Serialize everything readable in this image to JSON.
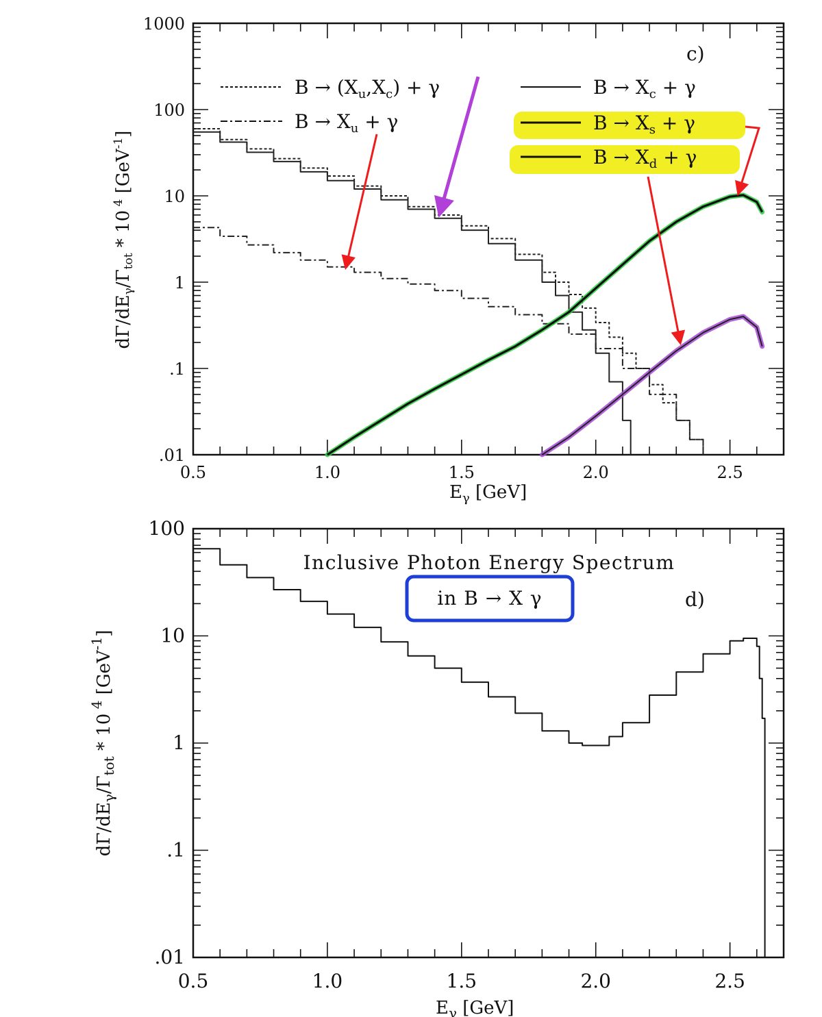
{
  "chart_data": [
    {
      "type": "line",
      "panel_label": "c)",
      "xlabel": "Eγ [GeV]",
      "ylabel": "dΓ/dEγ/Γtot * 10⁴ [GeV⁻¹]",
      "xlim": [
        0.5,
        2.7
      ],
      "ylim": [
        0.01,
        1000
      ],
      "yscale": "log",
      "x_ticks": [
        "0.5",
        "1.0",
        "1.5",
        "2.0",
        "2.5"
      ],
      "y_ticks": [
        "1000",
        "100",
        "10",
        "1",
        ".1",
        ".01"
      ],
      "highlight_color": "#f2ee24",
      "arrow_color": "#ee1c1c",
      "series": [
        {
          "name": "B → (Xu,Xc) + γ",
          "style": "dotted",
          "color": "#222222",
          "x": [
            0.5,
            0.6,
            0.7,
            0.8,
            0.9,
            1.0,
            1.1,
            1.2,
            1.3,
            1.4,
            1.5,
            1.6,
            1.7,
            1.8,
            1.85,
            1.9,
            1.95,
            2.0,
            2.05,
            2.1,
            2.15,
            2.2,
            2.25,
            2.3,
            2.35,
            2.4
          ],
          "y": [
            60,
            45,
            35,
            27,
            21,
            17,
            13,
            10,
            7.5,
            6,
            4.5,
            3.2,
            2.1,
            1.3,
            1.0,
            0.72,
            0.5,
            0.34,
            0.23,
            0.15,
            0.1,
            0.065,
            0.04,
            0.025,
            0.015,
            0.01
          ]
        },
        {
          "name": "B → Xc + γ",
          "style": "solid",
          "color": "#222222",
          "x": [
            0.5,
            0.6,
            0.7,
            0.8,
            0.9,
            1.0,
            1.1,
            1.2,
            1.3,
            1.4,
            1.5,
            1.6,
            1.7,
            1.8,
            1.85,
            1.9,
            1.95,
            2.0,
            2.05,
            2.1,
            2.13
          ],
          "y": [
            55,
            42,
            32,
            25,
            19,
            15,
            12,
            9,
            7,
            5.5,
            4,
            2.8,
            1.8,
            1.0,
            0.7,
            0.45,
            0.28,
            0.15,
            0.07,
            0.025,
            0.01
          ]
        },
        {
          "name": "B → Xu + γ",
          "style": "dashdot",
          "color": "#222222",
          "x": [
            0.5,
            0.6,
            0.7,
            0.8,
            0.9,
            1.0,
            1.1,
            1.2,
            1.3,
            1.4,
            1.5,
            1.6,
            1.7,
            1.8,
            1.9,
            2.0,
            2.1,
            2.2,
            2.3,
            2.35,
            2.4
          ],
          "y": [
            4.3,
            3.4,
            2.7,
            2.2,
            1.8,
            1.5,
            1.3,
            1.1,
            0.95,
            0.8,
            0.65,
            0.52,
            0.42,
            0.33,
            0.25,
            0.17,
            0.1,
            0.05,
            0.025,
            0.015,
            0.01
          ]
        },
        {
          "name": "B → Xs + γ",
          "style": "solid-thick",
          "color": "#111111",
          "overlay_color": "#2ecc40",
          "x": [
            1.0,
            1.1,
            1.2,
            1.3,
            1.4,
            1.5,
            1.6,
            1.7,
            1.8,
            1.9,
            2.0,
            2.1,
            2.2,
            2.3,
            2.4,
            2.5,
            2.55,
            2.6,
            2.62
          ],
          "y": [
            0.01,
            0.016,
            0.025,
            0.039,
            0.058,
            0.085,
            0.125,
            0.18,
            0.28,
            0.45,
            0.85,
            1.6,
            3.0,
            5.0,
            7.5,
            9.8,
            10.2,
            8.5,
            6.5
          ]
        },
        {
          "name": "B → Xd + γ",
          "style": "solid",
          "color": "#222222",
          "overlay_color": "#a64ad6",
          "x": [
            1.8,
            1.9,
            2.0,
            2.1,
            2.2,
            2.3,
            2.4,
            2.5,
            2.55,
            2.6,
            2.62
          ],
          "y": [
            0.01,
            0.016,
            0.028,
            0.05,
            0.09,
            0.16,
            0.26,
            0.37,
            0.4,
            0.3,
            0.18
          ]
        }
      ],
      "legend": [
        {
          "series": "B → (Xu,Xc) + γ",
          "prefix": "B",
          "arrow": "→",
          "body": "(X",
          "s1": "u",
          "mid": ",X",
          "s2": "c",
          "tail": ") + γ",
          "highlight": false
        },
        {
          "series": "B → Xc + γ",
          "prefix": "B",
          "arrow": "→",
          "body": "X",
          "s1": "c",
          "tail": " + γ",
          "highlight": false
        },
        {
          "series": "B → Xu + γ",
          "prefix": "B",
          "arrow": "→",
          "body": "X",
          "s1": "u",
          "tail": " + γ",
          "highlight": false
        },
        {
          "series": "B → Xs + γ",
          "prefix": "B",
          "arrow": "→",
          "body": "X",
          "s1": "s",
          "tail": " + γ",
          "highlight": true
        },
        {
          "series": "B → Xd + γ",
          "prefix": "B",
          "arrow": "→",
          "body": "X",
          "s1": "d",
          "tail": " + γ",
          "highlight": true
        }
      ]
    },
    {
      "type": "line",
      "panel_label": "d)",
      "title": "Inclusive Photon Energy Spectrum",
      "subtitle": "in B → X γ",
      "subtitle_box_color": "#1e3fd6",
      "xlabel": "Eγ [GeV]",
      "ylabel": "dΓ/dEγ/Γtot * 10⁴ [GeV⁻¹]",
      "xlim": [
        0.5,
        2.7
      ],
      "ylim": [
        0.01,
        100
      ],
      "yscale": "log",
      "x_ticks": [
        "0.5",
        "1.0",
        "1.5",
        "2.0",
        "2.5"
      ],
      "y_ticks": [
        "100",
        "10",
        "1",
        ".1",
        ".01"
      ],
      "series": [
        {
          "name": "",
          "style": "step",
          "color": "#111111",
          "x": [
            0.5,
            0.6,
            0.7,
            0.8,
            0.9,
            1.0,
            1.1,
            1.2,
            1.3,
            1.4,
            1.5,
            1.6,
            1.7,
            1.8,
            1.9,
            1.95,
            2.0,
            2.05,
            2.1,
            2.2,
            2.3,
            2.4,
            2.5,
            2.55,
            2.6,
            2.61,
            2.62,
            2.63
          ],
          "y": [
            65,
            46,
            35,
            27,
            21,
            16,
            12,
            8.8,
            6.5,
            5,
            3.7,
            2.7,
            1.9,
            1.3,
            1.0,
            0.95,
            0.95,
            1.15,
            1.55,
            2.8,
            4.6,
            6.8,
            9.0,
            9.5,
            8.0,
            4.0,
            1.7,
            0.01
          ]
        }
      ]
    }
  ]
}
